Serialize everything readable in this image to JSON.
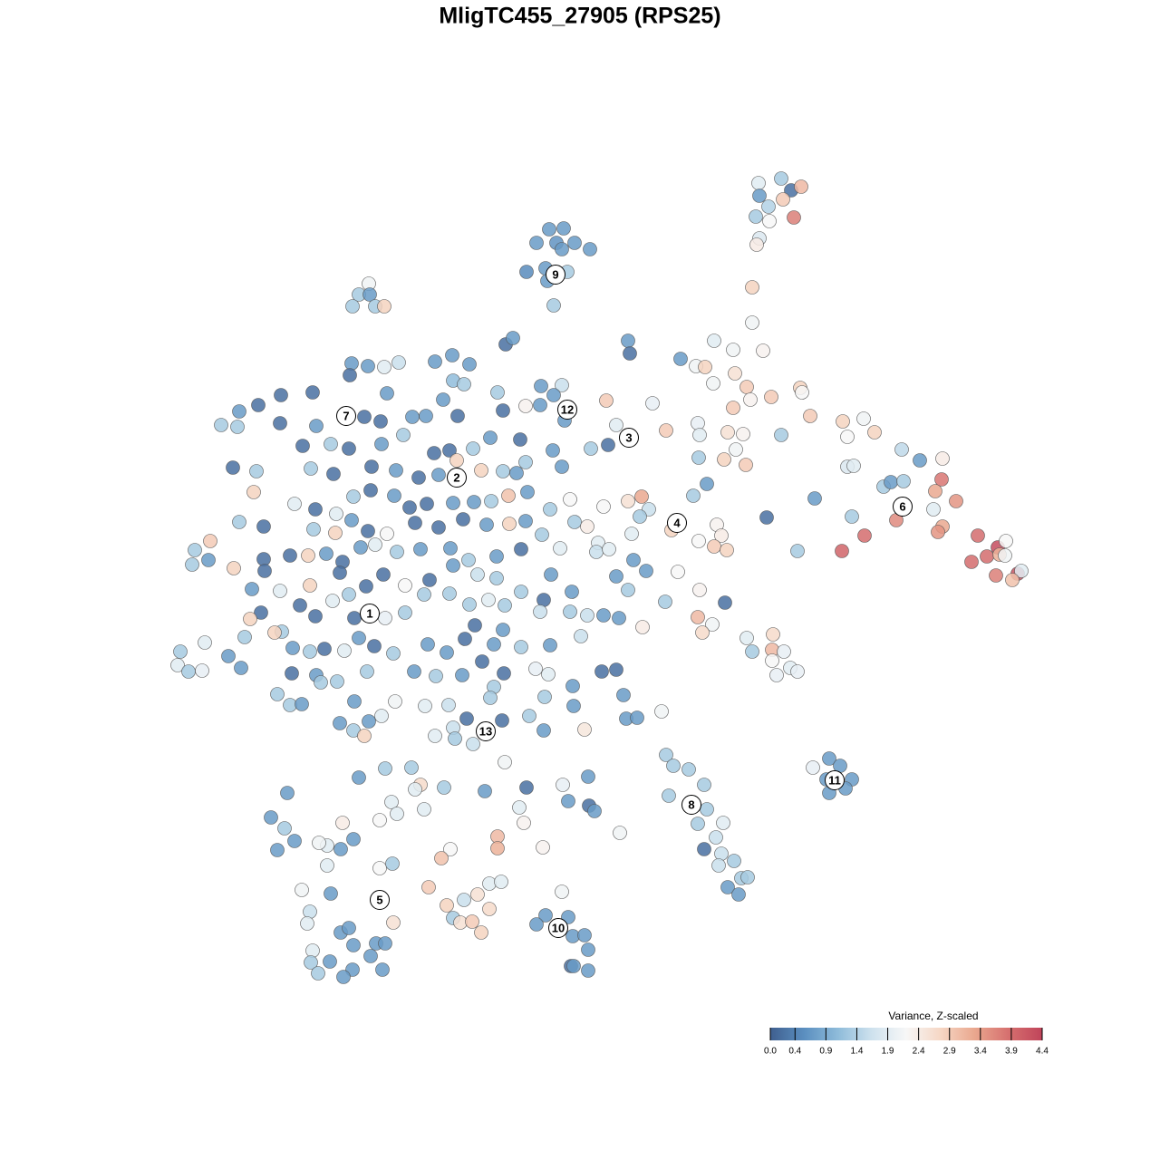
{
  "chart_data": {
    "type": "scatter",
    "title": "MligTC455_27905 (RPS25)",
    "xlim": [
      -50,
      50
    ],
    "ylim": [
      -50,
      50
    ],
    "x": [
      17.7,
      20.2,
      21.3,
      22.4,
      17.8,
      20.4,
      18.8,
      17.4,
      18.9,
      21.6,
      17.8,
      17.5,
      -5.4,
      -3.8,
      -6.8,
      -4.6,
      -2.6,
      -4.0,
      -0.9,
      -7.9,
      -5.8,
      -3.4,
      -5.6,
      -4.9,
      -25.3,
      -26.4,
      -25.2,
      -27.1,
      -24.6,
      -23.6,
      -10.2,
      -9.4,
      -27.2,
      -25.4,
      -23.6,
      -22.0,
      -18.0,
      -16.1,
      -14.2,
      -27.4,
      -16.0,
      -14.8,
      -35.0,
      -31.5,
      -23.3,
      -17.1,
      -37.5,
      -39.6,
      -41.6,
      -39.8,
      -35.1,
      -31.1,
      -25.8,
      -24.0,
      -20.5,
      -19.0,
      -15.5,
      -32.6,
      -29.5,
      -27.5,
      -23.9,
      -21.5,
      -18.1,
      -16.4,
      -13.8,
      -11.9,
      -8.6,
      -10.5,
      -11.1,
      -6.3,
      -4.0,
      -4.9,
      -8.0,
      -6.4,
      -3.7,
      0.9,
      2.0,
      1.1,
      -0.8,
      -5.0,
      -4.0,
      -8.0,
      -9.0,
      -10.5,
      -12.9,
      -15.6,
      -17.6,
      -19.8,
      -22.3,
      -25.0,
      -29.2,
      -31.7,
      -37.7,
      -40.3,
      -38.0,
      -33.5,
      -31.2,
      -27.0,
      -25.1,
      -22.5,
      -20.8,
      -18.9,
      -16.0,
      -13.7,
      -11.8,
      -9.9,
      -7.8,
      -5.3,
      -3.1,
      0.6,
      3.3,
      4.8,
      5.6,
      4.6,
      -39.6,
      -36.9,
      -31.4,
      -28.9,
      -29.0,
      -27.2,
      -25.4,
      -23.3,
      -20.2,
      -17.6,
      -14.9,
      -12.3,
      -9.8,
      -8.0,
      -6.2,
      -2.6,
      -1.2,
      0.0,
      3.7,
      8.1,
      -42.8,
      -44.5,
      -44.8,
      -43.0,
      -40.2,
      -36.9,
      -34.0,
      -32.0,
      -30.0,
      -28.2,
      -26.2,
      -24.6,
      -22.2,
      -19.6,
      -16.3,
      -14.3,
      -11.2,
      -8.5,
      -4.2,
      -0.2,
      1.2,
      3.9,
      5.3,
      -38.2,
      -36.8,
      -35.1,
      -31.8,
      -28.5,
      -25.6,
      -23.7,
      -21.3,
      -18.6,
      -16.0,
      -13.3,
      -11.2,
      -8.5,
      -5.2,
      -2.9,
      2.0,
      3.3,
      8.8,
      11.2,
      14.0,
      7.4,
      -37.2,
      -38.4,
      -34.9,
      -35.7,
      -32.9,
      -31.2,
      -29.3,
      -27.5,
      -26.9,
      -23.5,
      -21.3,
      -19.2,
      -16.4,
      -14.2,
      -12.1,
      -10.3,
      -6.0,
      -6.4,
      -3.1,
      -1.2,
      0.6,
      2.3,
      4.9,
      11.0,
      12.6,
      11.5,
      -46.1,
      -46.4,
      -45.2,
      -43.7,
      -43.4,
      -40.8,
      -39.4,
      -39.0,
      -33.7,
      -31.8,
      -30.2,
      -28.0,
      -26.4,
      -24.7,
      -22.6,
      -18.8,
      -16.7,
      -14.7,
      -13.6,
      -10.5,
      -11.5,
      -8.5,
      -5.3,
      -1.9,
      -33.8,
      -31.1,
      -28.8,
      -25.5,
      -20.3,
      -17.9,
      -15.0,
      -12.8,
      -10.4,
      -6.9,
      -5.5,
      0.4,
      2.0,
      -35.4,
      -34.0,
      -32.7,
      -30.6,
      -26.9,
      -22.4,
      -19.1,
      -16.5,
      -11.5,
      -11.9,
      -5.9,
      -2.8,
      2.8,
      -28.5,
      -25.3,
      -27.0,
      -25.8,
      -23.9,
      -18.0,
      -16.0,
      -15.8,
      -14.5,
      -13.8,
      -10.6,
      -7.6,
      -6.0,
      -2.7,
      -1.5,
      3.1,
      4.3,
      7.0,
      3.3,
      3.5,
      9.1,
      12.8,
      14.9,
      17.0,
      17.0,
      18.2,
      10.8,
      11.8,
      15.1,
      12.7,
      16.4,
      16.8,
      19.1,
      22.3,
      22.5,
      14.9,
      7.5,
      6.0,
      11.0,
      11.2,
      14.3,
      16.0,
      15.2,
      13.9,
      16.3,
      11.1,
      12.0,
      10.5,
      20.2,
      23.4,
      27.0,
      29.3,
      30.5,
      27.5,
      27.5,
      28.2,
      33.5,
      35.5,
      38.0,
      31.5,
      32.3,
      33.7,
      37.9,
      37.2,
      39.5,
      37.0,
      32.9,
      29.4,
      28.0,
      23.9,
      18.6,
      22.0,
      26.9,
      38.0,
      37.5,
      41.9,
      42.9,
      44.1,
      45.0,
      41.2,
      44.3,
      44.9,
      46.3,
      46.7,
      43.9,
      45.7,
      13.1,
      13.6,
      11.1,
      12.8,
      14.2,
      16.4,
      17.0,
      19.3,
      19.2,
      19.2,
      20.5,
      21.2,
      22.0,
      19.7,
      25.5,
      26.7,
      23.7,
      25.2,
      28.0,
      25.5,
      27.3,
      7.5,
      8.3,
      10.0,
      11.7,
      7.8,
      12.0,
      11.0,
      13.8,
      13.0,
      11.7,
      13.6,
      15.0,
      13.3,
      15.8,
      16.5,
      14.3,
      15.5,
      -26.4,
      -23.5,
      -20.6,
      -19.6,
      -20.2,
      -17.0,
      -12.5,
      -10.3,
      -7.9,
      -3.9,
      -1.1,
      -3.3,
      -1.0,
      -0.4,
      -8.7,
      -8.2,
      2.4,
      -34.3,
      -36.1,
      -34.6,
      -33.5,
      -35.4,
      -22.8,
      -22.2,
      -24.1,
      -19.2,
      -28.2,
      -27.0,
      -28.4,
      -29.9,
      -30.8,
      -29.9,
      -24.1,
      -22.7,
      -11.1,
      -11.1,
      -6.1,
      -16.3,
      -17.3,
      -18.7,
      -32.7,
      -29.5,
      -31.8,
      -32.1,
      -12.0,
      -10.7,
      -13.3,
      -14.8,
      -16.7,
      -16.0,
      -15.2,
      -13.9,
      -12.0,
      -12.9,
      -22.6,
      -4.0,
      -5.8,
      -3.3,
      -6.8,
      -2.8,
      -1.5,
      -1.1,
      -3.0,
      -2.7,
      -1.1,
      -28.4,
      -27.5,
      -24.5,
      -23.5,
      -27.0,
      -25.1,
      -31.5,
      -31.7,
      -29.6,
      -27.1,
      -30.9,
      -28.1,
      -23.8
    ],
    "y": [
      43.8,
      44.3,
      43.0,
      43.4,
      42.4,
      42.0,
      41.2,
      40.1,
      39.6,
      40.0,
      37.7,
      37.0,
      38.7,
      38.8,
      37.2,
      37.2,
      37.2,
      36.5,
      36.5,
      34.0,
      34.4,
      34.0,
      33.0,
      30.3,
      32.7,
      31.5,
      31.5,
      30.2,
      30.2,
      30.2,
      26.0,
      26.7,
      23.9,
      23.6,
      23.5,
      24.0,
      24.1,
      24.8,
      23.8,
      22.6,
      22.0,
      21.6,
      20.4,
      20.7,
      20.6,
      19.9,
      19.3,
      18.6,
      17.1,
      16.9,
      17.3,
      17.0,
      18.0,
      17.5,
      18.0,
      18.1,
      18.1,
      14.8,
      15.0,
      14.5,
      15.0,
      16.0,
      14.0,
      14.3,
      14.5,
      15.7,
      15.5,
      18.7,
      20.7,
      21.4,
      21.5,
      20.4,
      19.2,
      19.3,
      17.6,
      19.8,
      17.1,
      14.9,
      14.5,
      14.3,
      12.5,
      13.0,
      11.8,
      12.0,
      12.1,
      13.2,
      11.6,
      11.3,
      12.1,
      12.5,
      11.7,
      12.3,
      12.0,
      12.4,
      9.7,
      8.4,
      7.8,
      9.2,
      9.9,
      9.3,
      8.0,
      8.4,
      8.5,
      8.6,
      8.7,
      9.3,
      9.7,
      7.8,
      8.9,
      8.1,
      8.7,
      9.2,
      7.8,
      7.0,
      6.4,
      5.9,
      5.6,
      7.3,
      5.2,
      6.6,
      5.4,
      5.1,
      6.3,
      5.8,
      6.7,
      6.1,
      6.2,
      6.5,
      5.0,
      6.4,
      5.9,
      4.1,
      5.1,
      5.5,
      4.3,
      3.3,
      1.7,
      2.2,
      1.3,
      2.3,
      2.7,
      2.7,
      2.9,
      2.0,
      3.6,
      3.9,
      3.1,
      3.4,
      3.5,
      2.2,
      2.6,
      3.4,
      3.5,
      3.1,
      3.4,
      2.2,
      1.0,
      -1.0,
      1.0,
      -1.2,
      -0.6,
      0.8,
      -0.7,
      0.6,
      -0.6,
      0.0,
      1.6,
      0.6,
      0.2,
      -1.3,
      0.6,
      -1.3,
      0.4,
      -1.1,
      0.9,
      -1.1,
      -2.5,
      -2.4,
      -3.6,
      -4.3,
      -5.7,
      -5.8,
      -2.8,
      -4.0,
      -2.3,
      -1.6,
      -4.2,
      -4.2,
      -3.6,
      -1.6,
      -1.5,
      -2.7,
      -2.2,
      -2.8,
      -2.2,
      -3.5,
      -3.5,
      -3.9,
      -3.9,
      -4.2,
      -5.2,
      -4.1,
      -4.9,
      -5.8,
      -7.9,
      -9.4,
      -10.1,
      -10.0,
      -6.9,
      -8.4,
      -9.7,
      -6.3,
      -7.5,
      -7.9,
      -7.6,
      -7.8,
      -6.4,
      -7.3,
      -8.1,
      -7.1,
      -8.0,
      -6.5,
      -5.0,
      -5.5,
      -7.1,
      -7.4,
      -7.2,
      -6.2,
      -10.3,
      -10.5,
      -11.2,
      -10.1,
      -10.1,
      -10.6,
      -10.5,
      -9.0,
      -10.3,
      -9.8,
      -10.4,
      -10.1,
      -9.9,
      -12.6,
      -13.8,
      -13.7,
      -11.3,
      -13.4,
      -13.4,
      -13.9,
      -13.8,
      -11.8,
      -13.0,
      -12.9,
      -11.7,
      -12.7,
      -15.8,
      -15.6,
      -16.6,
      -17.2,
      -15.0,
      -17.2,
      -16.3,
      -17.5,
      -15.3,
      -18.1,
      -15.5,
      -15.0,
      -16.6,
      -13.9,
      -16.5,
      -15.3,
      -15.2,
      -14.5,
      26.4,
      25.0,
      24.4,
      26.4,
      25.4,
      28.4,
      32.3,
      25.3,
      23.6,
      23.5,
      22.8,
      21.7,
      21.3,
      19.9,
      20.2,
      21.2,
      20.7,
      19.0,
      16.5,
      19.5,
      17.3,
      16.0,
      16.3,
      16.1,
      14.4,
      13.3,
      12.7,
      13.5,
      10.6,
      9.3,
      16.0,
      18.1,
      17.5,
      17.8,
      16.3,
      15.8,
      12.5,
      12.6,
      14.4,
      13.2,
      13.4,
      10.3,
      10.8,
      10.9,
      11.1,
      9.8,
      8.7,
      7.8,
      6.6,
      4.9,
      7.0,
      9.0,
      6.9,
      3.2,
      3.2,
      5.9,
      5.3,
      4.9,
      2.6,
      3.6,
      4.3,
      2.0,
      2.8,
      2.7,
      0.7,
      1.0,
      0.5,
      0.0,
      6.1,
      4.9,
      4.3,
      3.7,
      3.3,
      -6.4,
      -7.9,
      -6.0,
      -7.7,
      -8.9,
      -7.9,
      -9.7,
      -10.1,
      -10.5,
      -19.7,
      -20.5,
      -20.7,
      -22.0,
      -22.0,
      -23.5,
      -23.0,
      -19.3,
      -20.5,
      -20.9,
      -22.6,
      -23.8,
      -25.3,
      -26.9,
      -26.8,
      -28.4,
      -29.7,
      -30.2,
      -31.0,
      -31.5,
      -32.9,
      -32.8,
      -33.9,
      -34.7,
      -21.8,
      -20.8,
      -20.7,
      -22.6,
      -23.1,
      -22.9,
      -23.3,
      -20.1,
      -22.9,
      -22.6,
      -21.7,
      -24.4,
      -24.9,
      -25.5,
      -25.1,
      -26.8,
      -27.9,
      -23.5,
      -26.2,
      -27.4,
      -28.8,
      -29.8,
      -24.5,
      -25.8,
      -26.5,
      -25.3,
      -26.8,
      -28.6,
      -29.7,
      -29.3,
      -29.0,
      -31.5,
      -31.8,
      -31.3,
      -28.3,
      -29.6,
      -29.5,
      -29.7,
      -30.7,
      -33.9,
      -34.2,
      -34.6,
      -36.6,
      -37.9,
      -33.5,
      -33.3,
      -34.7,
      -35.3,
      -35.9,
      -37.3,
      -37.8,
      -37.7,
      -36.3,
      -38.9,
      -37.8,
      -34.4,
      -37.0,
      -37.2,
      -38.0,
      -39.3,
      -39.2,
      -40.8,
      -42.6,
      -42.6,
      -43.1,
      -38.9,
      -38.4,
      -40.1,
      -40.1,
      -40.3,
      -41.5,
      -40.9,
      -42.2,
      -42.1,
      -43.0,
      -43.4,
      -43.8,
      -43.0
    ],
    "values": [
      1.9,
      1.3,
      0.2,
      3.1,
      0.7,
      2.9,
      1.4,
      1.3,
      2.2,
      3.7,
      1.8,
      2.4,
      0.7,
      0.7,
      0.7,
      0.6,
      0.7,
      0.7,
      0.7,
      0.5,
      0.7,
      1.3,
      0.7,
      1.3,
      2.1,
      1.3,
      0.7,
      1.3,
      1.3,
      2.8,
      0.2,
      0.7,
      0.7,
      0.7,
      1.9,
      1.6,
      0.7,
      0.7,
      0.7,
      0.2,
      1.1,
      1.3,
      0.2,
      0.2,
      0.7,
      0.7,
      0.2,
      0.7,
      1.3,
      1.3,
      0.2,
      0.7,
      0.2,
      0.2,
      0.7,
      0.7,
      0.2,
      0.2,
      1.3,
      0.2,
      0.7,
      1.3,
      0.2,
      0.2,
      1.3,
      0.7,
      0.2,
      0.2,
      1.3,
      0.7,
      1.6,
      0.7,
      2.3,
      0.7,
      0.7,
      2.9,
      1.9,
      0.2,
      1.3,
      0.7,
      0.7,
      1.3,
      0.7,
      1.3,
      2.8,
      2.8,
      0.7,
      0.2,
      0.7,
      0.2,
      0.2,
      1.3,
      1.3,
      0.2,
      2.8,
      1.9,
      0.2,
      1.3,
      0.2,
      0.7,
      0.2,
      0.2,
      0.7,
      0.7,
      1.3,
      3.0,
      0.7,
      1.3,
      2.2,
      2.2,
      2.6,
      3.3,
      1.6,
      1.3,
      1.3,
      0.2,
      1.3,
      1.9,
      2.8,
      0.7,
      0.2,
      2.2,
      0.2,
      0.2,
      0.2,
      0.7,
      2.8,
      0.7,
      1.3,
      1.3,
      2.4,
      1.9,
      1.9,
      2.8,
      2.9,
      1.3,
      1.3,
      0.7,
      2.8,
      0.2,
      0.2,
      2.8,
      0.7,
      0.2,
      0.7,
      1.9,
      1.3,
      0.7,
      0.7,
      1.3,
      0.7,
      0.2,
      1.9,
      1.6,
      1.9,
      0.7,
      0.7,
      0.7,
      0.2,
      1.9,
      2.8,
      0.2,
      0.2,
      0.2,
      2.2,
      0.2,
      0.7,
      1.6,
      1.3,
      1.3,
      0.7,
      0.7,
      0.7,
      1.3,
      2.2,
      2.3,
      0.2,
      1.3,
      0.2,
      2.8,
      1.3,
      2.8,
      0.2,
      0.2,
      1.9,
      1.3,
      0.2,
      2.0,
      1.3,
      1.3,
      1.3,
      1.3,
      1.9,
      1.3,
      0.2,
      1.6,
      1.3,
      1.6,
      0.7,
      0.7,
      2.4,
      3.1,
      2.1,
      2.7,
      1.3,
      1.9,
      1.3,
      2.0,
      1.9,
      0.7,
      0.7,
      1.3,
      0.7,
      1.3,
      0.2,
      1.9,
      0.7,
      0.2,
      1.3,
      0.7,
      0.7,
      0.2,
      0.2,
      0.7,
      0.7,
      1.3,
      0.7,
      1.6,
      0.2,
      0.7,
      1.3,
      1.3,
      0.7,
      1.3,
      0.7,
      0.2,
      0.2,
      2.0,
      1.9,
      0.2,
      0.2,
      1.3,
      1.3,
      0.7,
      1.3,
      0.7,
      2.1,
      1.9,
      1.6,
      1.3,
      1.3,
      1.3,
      0.7,
      0.7,
      0.7,
      0.7,
      1.3,
      2.8,
      1.9,
      1.9,
      1.6,
      1.3,
      0.2,
      1.6,
      0.2,
      1.3,
      0.7,
      0.7,
      2.5,
      0.7,
      0.7,
      2.1,
      0.7,
      0.2,
      0.7,
      1.9,
      2.1,
      2.1,
      2.8,
      2.3,
      2.1,
      2.8,
      2.6,
      2.1,
      2.9,
      2.3,
      2.9,
      2.8,
      2.2,
      2.9,
      2.9,
      2.0,
      2.0,
      1.9,
      2.6,
      2.3,
      2.1,
      2.8,
      2.9,
      1.3,
      0.7,
      1.3,
      1.3,
      2.9,
      2.8,
      2.1,
      2.8,
      2.2,
      1.8,
      1.9,
      1.5,
      0.7,
      2.4,
      1.3,
      0.7,
      1.3,
      3.8,
      3.3,
      3.5,
      1.9,
      3.6,
      3.9,
      1.3,
      0.7,
      0.2,
      1.3,
      4.0,
      3.3,
      3.5,
      3.9,
      3.9,
      4.3,
      2.2,
      3.9,
      3.2,
      2.1,
      4.2,
      1.9,
      3.7,
      3.0,
      2.3,
      2.4,
      2.2,
      2.9,
      2.8,
      1.9,
      1.3,
      2.7,
      3.1,
      2.2,
      2.0,
      1.9,
      2.0,
      2.0,
      0.7,
      0.7,
      2.0,
      0.7,
      0.7,
      0.7,
      0.7,
      1.3,
      1.3,
      1.3,
      1.3,
      1.3,
      1.3,
      1.3,
      1.9,
      1.6,
      0.2,
      1.6,
      1.3,
      1.6,
      1.3,
      1.3,
      0.7,
      0.7,
      0.7,
      1.3,
      1.3,
      2.7,
      1.9,
      1.3,
      0.7,
      2.1,
      0.2,
      2.0,
      0.7,
      0.7,
      0.2,
      0.7,
      1.9,
      2.3,
      2.1,
      0.7,
      0.7,
      1.3,
      0.7,
      0.7,
      1.9,
      1.9,
      2.2,
      1.9,
      2.4,
      0.7,
      0.7,
      1.9,
      2.1,
      1.9,
      2.2,
      1.3,
      3.1,
      3.2,
      2.3,
      2.2,
      3.0,
      2.9,
      2.1,
      0.7,
      1.6,
      1.9,
      1.9,
      1.9,
      2.6,
      1.6,
      2.8,
      1.3,
      2.6,
      2.9,
      2.7,
      2.8,
      2.6,
      2.1,
      0.7,
      0.7,
      0.7,
      0.7,
      0.7,
      0.7,
      0.2,
      0.7,
      0.7,
      0.7,
      0.7,
      0.7,
      0.7,
      0.7,
      0.7,
      1.9,
      1.3,
      0.7,
      0.7,
      1.3,
      0.7,
      0.7
    ],
    "clusters": [
      {
        "label": "1",
        "x": -25.2,
        "y": -3.7
      },
      {
        "label": "2",
        "x": -15.6,
        "y": 11.3
      },
      {
        "label": "3",
        "x": 3.4,
        "y": 15.7
      },
      {
        "label": "4",
        "x": 8.7,
        "y": 6.3
      },
      {
        "label": "5",
        "x": -24.1,
        "y": -35.3
      },
      {
        "label": "6",
        "x": 33.6,
        "y": 8.1
      },
      {
        "label": "7",
        "x": -27.8,
        "y": 18.1
      },
      {
        "label": "8",
        "x": 10.3,
        "y": -24.8
      },
      {
        "label": "9",
        "x": -4.7,
        "y": 33.7
      },
      {
        "label": "10",
        "x": -4.4,
        "y": -38.4
      },
      {
        "label": "11",
        "x": 26.1,
        "y": -22.1
      },
      {
        "label": "12",
        "x": -3.4,
        "y": 18.8
      },
      {
        "label": "13",
        "x": -12.4,
        "y": -16.7
      }
    ],
    "colorbar": {
      "title": "Variance, Z-scaled",
      "lim": [
        0,
        4.4
      ],
      "ticks": [
        {
          "value": 0,
          "label": "0.0"
        },
        0.4,
        0.9,
        1.4,
        1.9,
        2.4,
        2.9,
        3.4,
        3.9,
        4.4
      ],
      "colors": [
        "#3f5f8f",
        "#5b8fc0",
        "#8fbcda",
        "#cfe2ee",
        "#f7f7f7",
        "#f6d7c5",
        "#eaa88f",
        "#d6706f",
        "#c0445a"
      ]
    }
  }
}
